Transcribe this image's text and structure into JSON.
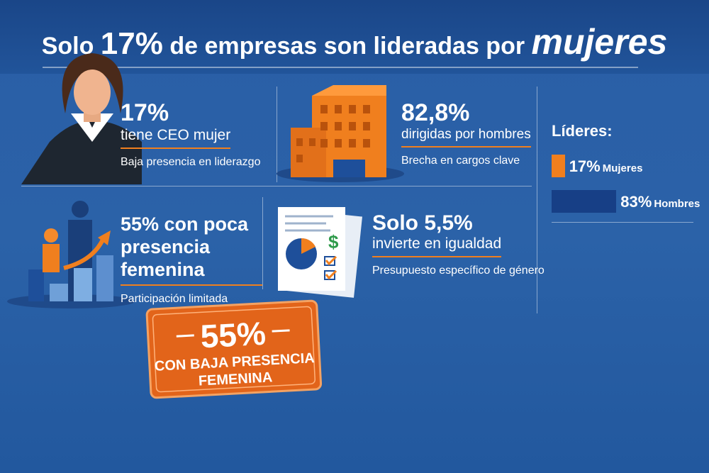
{
  "header": {
    "title": [
      "Solo ",
      "17%",
      " de empresas son lideradas por ",
      "mujeres"
    ]
  },
  "cards": [
    {
      "headline": "17%",
      "subtitle": "tiene CEO mujer",
      "note": "Baja presencia en liderazgo"
    },
    {
      "headline": "82,8%",
      "subtitle": "dirigidas por hombres",
      "note": "Brecha en cargos clave"
    },
    {
      "headline": "55% con poca presencia femenina",
      "note": "Participación limitada"
    },
    {
      "headline": "Solo 5,5%",
      "subtitle": "invierte en igualdad",
      "note": "Presupuesto específico de género"
    }
  ],
  "leaders": {
    "title": "Líderes:",
    "bars": [
      {
        "value": 17,
        "label": "17%",
        "name": "Mujeres",
        "color": "#f07f1e"
      },
      {
        "value": 83,
        "label": "83%",
        "name": "Hombres",
        "color": "#173f86"
      }
    ]
  },
  "badge": {
    "value": "55%",
    "text": "CON BAJA PRESENCIA FEMENINA"
  }
}
